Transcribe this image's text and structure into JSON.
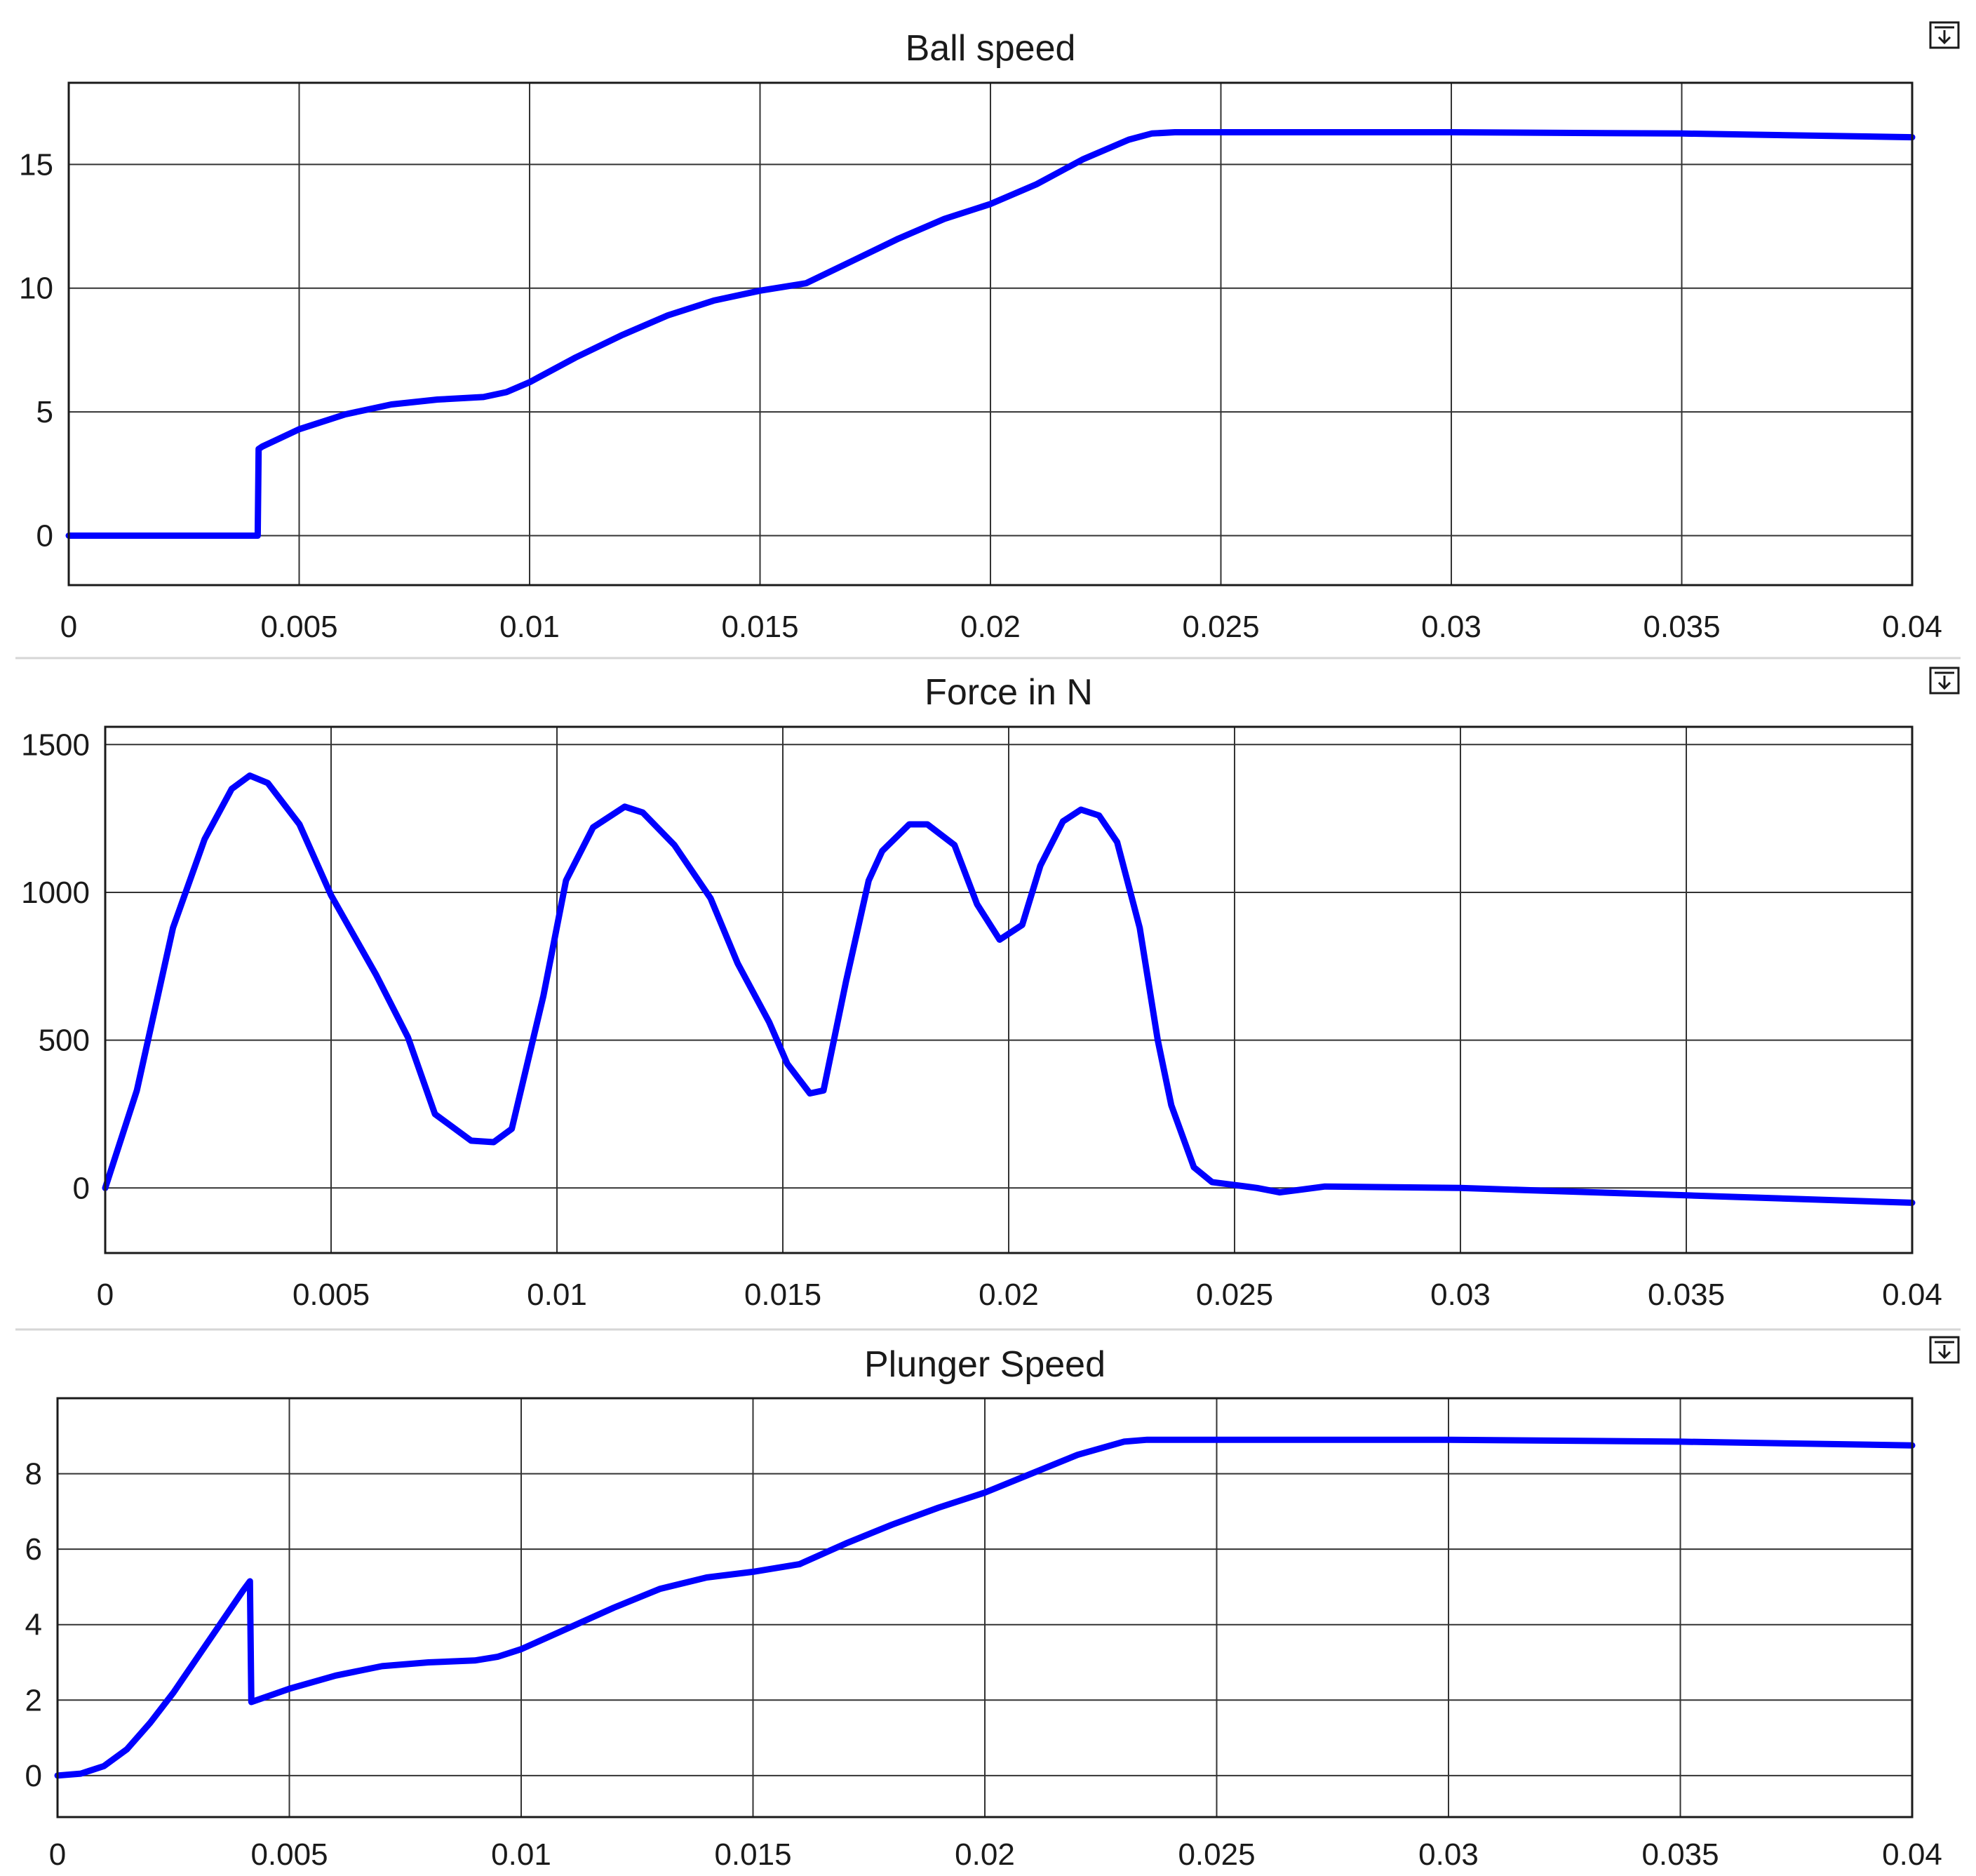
{
  "colors": {
    "line": "#0000ff",
    "grid": "#333333",
    "text": "#1a1a1a",
    "background": "#ffffff"
  },
  "icons": {
    "panel_menu": "dock-arrow-icon"
  },
  "chart_data": [
    {
      "type": "line",
      "title": "Ball speed",
      "xlabel": "",
      "ylabel": "",
      "xlim": [
        0,
        0.04
      ],
      "ylim": [
        -2,
        18.3
      ],
      "grid": true,
      "x_ticks": [
        0,
        0.005,
        0.01,
        0.015,
        0.02,
        0.025,
        0.03,
        0.035,
        0.04
      ],
      "x_tick_labels": [
        "0",
        "0.005",
        "0.01",
        "0.015",
        "0.02",
        "0.025",
        "0.03",
        "0.035",
        "0.04"
      ],
      "y_ticks": [
        0,
        5,
        10,
        15
      ],
      "y_tick_labels": [
        "0",
        "5",
        "10",
        "15"
      ],
      "series": [
        {
          "x": [
            0,
            0.0041,
            0.00412,
            0.0042,
            0.005,
            0.006,
            0.007,
            0.008,
            0.009,
            0.0095,
            0.01,
            0.011,
            0.012,
            0.013,
            0.014,
            0.015,
            0.016,
            0.017,
            0.018,
            0.019,
            0.02,
            0.021,
            0.022,
            0.023,
            0.0235,
            0.024,
            0.025,
            0.03,
            0.035,
            0.04
          ],
          "y": [
            0,
            0,
            3.5,
            3.6,
            4.3,
            4.9,
            5.3,
            5.5,
            5.6,
            5.8,
            6.2,
            7.2,
            8.1,
            8.9,
            9.5,
            9.9,
            10.2,
            11.1,
            12.0,
            12.8,
            13.4,
            14.2,
            15.2,
            16.0,
            16.25,
            16.3,
            16.3,
            16.3,
            16.25,
            16.1
          ]
        }
      ]
    },
    {
      "type": "line",
      "title": "Force in N",
      "xlabel": "",
      "ylabel": "",
      "xlim": [
        0,
        0.04
      ],
      "ylim": [
        -220,
        1560
      ],
      "grid": true,
      "x_ticks": [
        0,
        0.005,
        0.01,
        0.015,
        0.02,
        0.025,
        0.03,
        0.035,
        0.04
      ],
      "x_tick_labels": [
        "0",
        "0.005",
        "0.01",
        "0.015",
        "0.02",
        "0.025",
        "0.03",
        "0.035",
        "0.04"
      ],
      "y_ticks": [
        0,
        500,
        1000,
        1500
      ],
      "y_tick_labels": [
        "0",
        "500",
        "1000",
        "1500"
      ],
      "series": [
        {
          "x": [
            0,
            0.0007,
            0.0015,
            0.0022,
            0.0028,
            0.0032,
            0.0036,
            0.0043,
            0.005,
            0.006,
            0.0067,
            0.0073,
            0.0081,
            0.0086,
            0.009,
            0.0097,
            0.0102,
            0.0108,
            0.0115,
            0.0119,
            0.0126,
            0.0134,
            0.014,
            0.0147,
            0.0151,
            0.0156,
            0.0159,
            0.0164,
            0.0169,
            0.0172,
            0.0178,
            0.0182,
            0.0188,
            0.0193,
            0.0198,
            0.0203,
            0.0207,
            0.0212,
            0.0216,
            0.022,
            0.0224,
            0.0229,
            0.0233,
            0.0236,
            0.0241,
            0.0245,
            0.025,
            0.0255,
            0.026,
            0.0265,
            0.027,
            0.03,
            0.035,
            0.04
          ],
          "y": [
            0,
            330,
            880,
            1180,
            1350,
            1395,
            1370,
            1230,
            990,
            720,
            510,
            250,
            160,
            155,
            200,
            650,
            1040,
            1220,
            1290,
            1270,
            1160,
            980,
            760,
            560,
            420,
            320,
            330,
            700,
            1040,
            1140,
            1230,
            1230,
            1160,
            960,
            840,
            890,
            1090,
            1240,
            1280,
            1260,
            1170,
            880,
            500,
            280,
            70,
            20,
            10,
            0,
            -15,
            -5,
            5,
            0,
            -25,
            -50
          ]
        }
      ]
    },
    {
      "type": "line",
      "title": "Plunger Speed",
      "xlabel": "",
      "ylabel": "",
      "xlim": [
        0,
        0.04
      ],
      "ylim": [
        -1.1,
        10.0
      ],
      "grid": true,
      "x_ticks": [
        0,
        0.005,
        0.01,
        0.015,
        0.02,
        0.025,
        0.03,
        0.035,
        0.04
      ],
      "x_tick_labels": [
        "0",
        "0.005",
        "0.01",
        "0.015",
        "0.02",
        "0.025",
        "0.03",
        "0.035",
        "0.04"
      ],
      "y_ticks": [
        0,
        2,
        4,
        6,
        8
      ],
      "y_tick_labels": [
        "0",
        "2",
        "4",
        "6",
        "8"
      ],
      "series": [
        {
          "x": [
            0,
            0.0005,
            0.001,
            0.0015,
            0.002,
            0.0025,
            0.003,
            0.0035,
            0.004,
            0.00415,
            0.00418,
            0.0043,
            0.005,
            0.006,
            0.007,
            0.008,
            0.009,
            0.0095,
            0.01,
            0.011,
            0.012,
            0.013,
            0.014,
            0.015,
            0.016,
            0.017,
            0.018,
            0.019,
            0.02,
            0.021,
            0.022,
            0.023,
            0.0235,
            0.024,
            0.025,
            0.03,
            0.035,
            0.04
          ],
          "y": [
            0,
            0.05,
            0.25,
            0.7,
            1.4,
            2.2,
            3.1,
            4.0,
            4.9,
            5.15,
            1.95,
            2.0,
            2.3,
            2.65,
            2.9,
            3.0,
            3.05,
            3.15,
            3.35,
            3.9,
            4.45,
            4.95,
            5.25,
            5.4,
            5.6,
            6.15,
            6.65,
            7.1,
            7.5,
            8.0,
            8.5,
            8.85,
            8.9,
            8.9,
            8.9,
            8.9,
            8.85,
            8.75
          ]
        }
      ]
    }
  ]
}
